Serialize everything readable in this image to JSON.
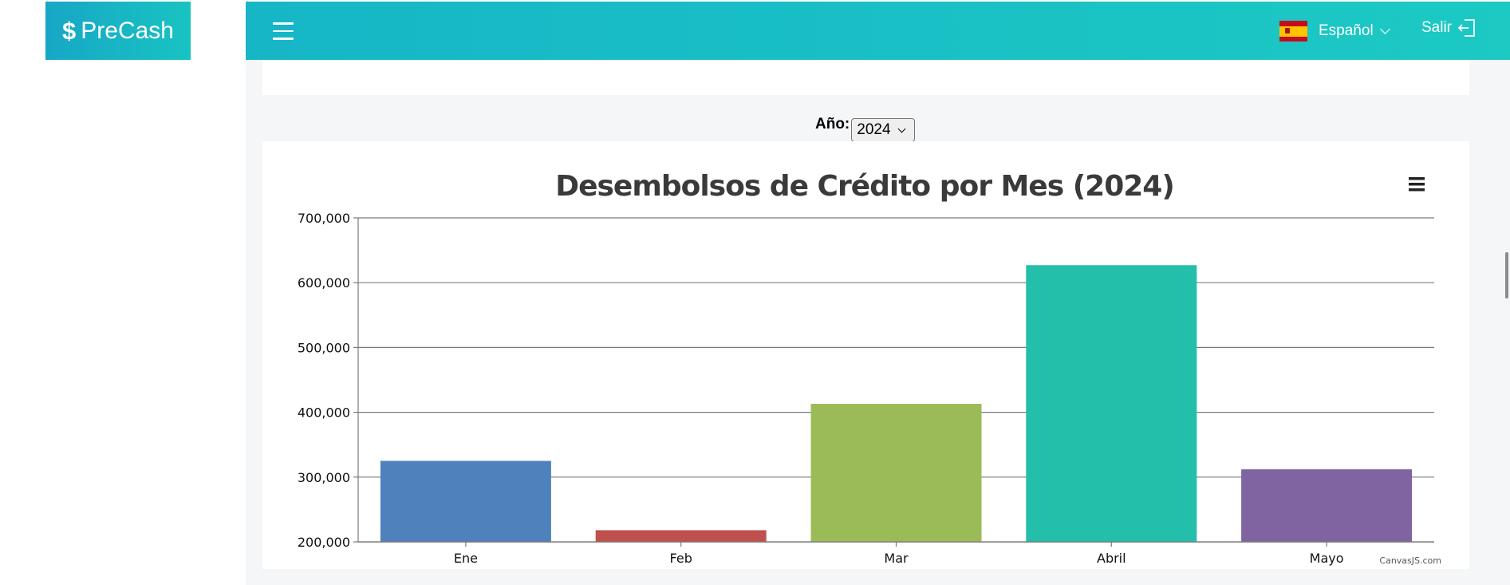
{
  "brand": {
    "symbol": "$",
    "name": "PreCash"
  },
  "header": {
    "language_label": "Español",
    "logout_label": "Salir"
  },
  "filter": {
    "year_label": "Año:",
    "selected_year": "2024"
  },
  "chart_data": {
    "type": "bar",
    "title": "Desembolsos de Crédito por Mes (2024)",
    "categories": [
      "Ene",
      "Feb",
      "Mar",
      "Abril",
      "Mayo"
    ],
    "values": [
      325000,
      218000,
      413000,
      627000,
      312000
    ],
    "colors": [
      "#4f81bc",
      "#c0504e",
      "#9bbb58",
      "#23bfaa",
      "#8064a1"
    ],
    "ylim": [
      200000,
      700000
    ],
    "yticks": [
      "200,000",
      "300,000",
      "400,000",
      "500,000",
      "600,000",
      "700,000"
    ],
    "grid": true,
    "credit": "CanvasJS.com"
  },
  "colors": {
    "header_gradient_start": "#16b6c7",
    "header_gradient_end": "#1cc9c3"
  }
}
